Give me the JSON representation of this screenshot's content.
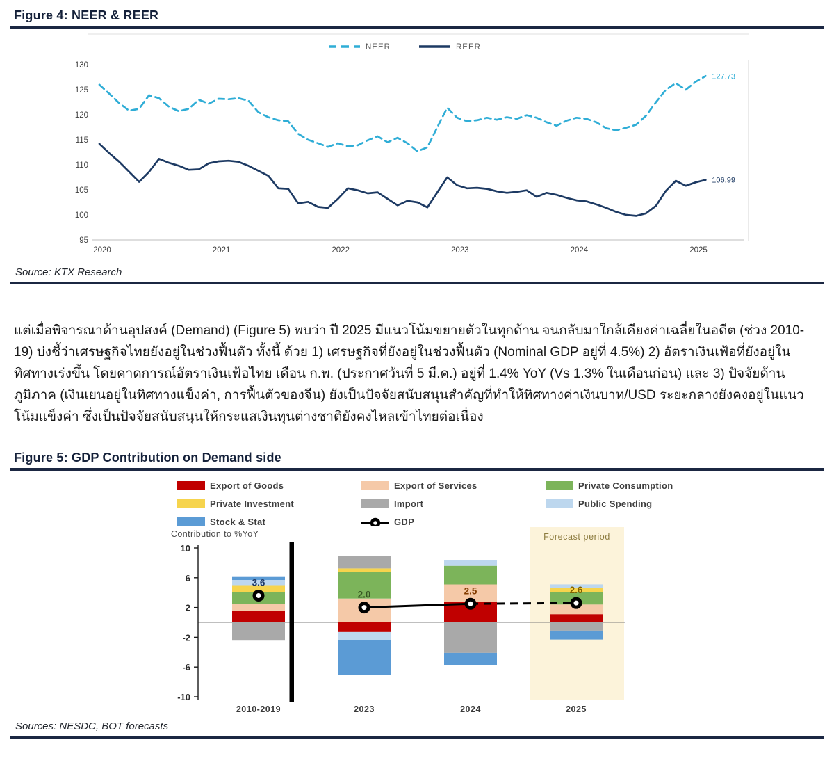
{
  "figure4": {
    "title": "Figure 4: NEER & REER",
    "source": "Source: KTX Research",
    "chart_data": {
      "type": "line",
      "x_start": "2020-01",
      "x_freq": "monthly",
      "x_year_labels": [
        "2020",
        "2021",
        "2022",
        "2023",
        "2024",
        "2025"
      ],
      "ylim": [
        95,
        130
      ],
      "yticks": [
        130,
        125,
        120,
        115,
        110,
        105,
        100,
        95
      ],
      "grid": false,
      "legend_position": "top-center",
      "series": [
        {
          "name": "NEER",
          "style": "dashed",
          "color": "#2fadd6",
          "end_label": "127.73",
          "values": [
            126.0,
            124.2,
            122.3,
            120.8,
            121.2,
            123.9,
            123.3,
            121.6,
            120.7,
            121.2,
            123.0,
            122.2,
            123.2,
            123.1,
            123.3,
            122.8,
            120.5,
            119.5,
            118.9,
            118.7,
            116.2,
            115.0,
            114.3,
            113.6,
            114.3,
            113.7,
            113.9,
            114.9,
            115.7,
            114.5,
            115.4,
            114.3,
            112.7,
            113.5,
            117.5,
            121.4,
            119.4,
            118.7,
            118.9,
            119.4,
            119.0,
            119.5,
            119.2,
            119.9,
            119.4,
            118.5,
            117.8,
            118.8,
            119.4,
            119.2,
            118.5,
            117.3,
            116.9,
            117.4,
            118.0,
            119.8,
            122.5,
            125.0,
            126.3,
            125.0,
            126.6,
            127.73
          ]
        },
        {
          "name": "REER",
          "style": "solid",
          "color": "#1d3a63",
          "end_label": "106.99",
          "values": [
            114.2,
            112.3,
            110.6,
            108.6,
            106.6,
            108.6,
            111.2,
            110.4,
            109.8,
            109.0,
            109.1,
            110.3,
            110.7,
            110.8,
            110.6,
            109.8,
            108.8,
            107.8,
            105.3,
            105.2,
            102.3,
            102.6,
            101.6,
            101.4,
            103.2,
            105.3,
            104.9,
            104.3,
            104.5,
            103.2,
            101.9,
            102.8,
            102.5,
            101.5,
            104.5,
            107.5,
            105.9,
            105.3,
            105.4,
            105.2,
            104.7,
            104.4,
            104.6,
            104.9,
            103.6,
            104.4,
            104.0,
            103.4,
            102.9,
            102.7,
            102.1,
            101.4,
            100.6,
            100.0,
            99.8,
            100.3,
            101.8,
            104.8,
            106.8,
            105.8,
            106.5,
            106.99
          ]
        }
      ]
    }
  },
  "paragraph": {
    "text": "แต่เมื่อพิจารณาด้านอุปสงค์ (Demand) (Figure 5) พบว่า ปี 2025 มีแนวโน้มขยายตัวในทุกด้าน จนกลับมาใกล้เคียงค่าเฉลี่ยในอดีต (ช่วง 2010-19) บ่งชี้ว่าเศรษฐกิจไทยยังอยู่ในช่วงฟื้นตัว ทั้งนี้ ด้วย 1) เศรษฐกิจที่ยังอยู่ในช่วงฟื้นตัว (Nominal GDP อยู่ที่ 4.5%) 2) อัตราเงินเฟ้อที่ยังอยู่ในทิศทางเร่งขึ้น โดยคาดการณ์อัตราเงินเฟ้อไทย เดือน ก.พ. (ประกาศวันที่ 5 มี.ค.) อยู่ที่ 1.4% YoY (Vs 1.3% ในเดือนก่อน) และ 3) ปัจจัยด้านภูมิภาค (เงินเยนอยู่ในทิศทางแข็งค่า, การฟื้นตัวของจีน) ยังเป็นปัจจัยสนับสนุนสำคัญที่ทำให้ทิศทางค่าเงินบาท/USD ระยะกลางยังคงอยู่ในแนวโน้มแข็งค่า ซึ่งเป็นปัจจัยสนับสนุนให้กระแสเงินทุนต่างชาติยังคงไหลเข้าไทยต่อเนื่อง"
  },
  "figure5": {
    "title": "Figure 5: GDP Contribution on Demand side",
    "source": "Sources: NESDC, BOT forecasts",
    "chart_data": {
      "type": "bar",
      "stacked": true,
      "ylabel": "Contribution to %YoY",
      "ylim": [
        -10,
        10
      ],
      "yticks": [
        10,
        6,
        2,
        -2,
        -6,
        -10
      ],
      "categories": [
        "2010-2019",
        "2023",
        "2024",
        "2025"
      ],
      "colors": {
        "goods": "#c00000",
        "services": "#f5c9a8",
        "consumption": "#7cb45a",
        "investment": "#f6d44d",
        "import": "#a9a9a9",
        "public": "#bdd7ee",
        "stock": "#5b9bd5",
        "gdp": "#000000"
      },
      "legend": [
        {
          "label": "Export of Goods",
          "key": "goods"
        },
        {
          "label": "Export of Services",
          "key": "services"
        },
        {
          "label": "Private Consumption",
          "key": "consumption"
        },
        {
          "label": "Private Investment",
          "key": "investment"
        },
        {
          "label": "Import",
          "key": "import"
        },
        {
          "label": "Public Spending",
          "key": "public"
        },
        {
          "label": "Stock & Stat",
          "key": "stock"
        },
        {
          "label": "GDP",
          "key": "gdp",
          "type": "line-marker"
        }
      ],
      "series": [
        {
          "name": "Export of Goods",
          "key": "goods",
          "values": [
            1.5,
            -1.3,
            2.75,
            1.1
          ]
        },
        {
          "name": "Export of Services",
          "key": "services",
          "values": [
            0.95,
            3.2,
            2.35,
            1.3
          ]
        },
        {
          "name": "Private Consumption",
          "key": "consumption",
          "values": [
            1.65,
            3.6,
            2.5,
            1.7
          ]
        },
        {
          "name": "Private Investment",
          "key": "investment",
          "values": [
            0.9,
            0.45,
            0,
            0.5
          ]
        },
        {
          "name": "Import",
          "key": "import",
          "values": [
            -2.45,
            1.7,
            -4.1,
            -1.1
          ]
        },
        {
          "name": "Public Spending",
          "key": "public",
          "values": [
            0.7,
            -1.1,
            0.75,
            0.5
          ]
        },
        {
          "name": "Stock & Stat",
          "key": "stock",
          "values": [
            0.4,
            -4.7,
            -1.6,
            -1.2
          ]
        }
      ],
      "gdp_line": {
        "name": "GDP",
        "values": [
          3.6,
          2.0,
          2.5,
          2.6
        ],
        "labels": [
          "3.6",
          "2.0",
          "2.5",
          "2.6"
        ],
        "label_colors": [
          "#1f3864",
          "#375623",
          "#833c00",
          "#7f6000"
        ],
        "solid_segment": [
          "2023",
          "2024"
        ],
        "dashed_segment": [
          "2024",
          "2025"
        ]
      },
      "forecast": {
        "label": "Forecast period",
        "bg": "#fcf3da",
        "label_color": "#8c7b3e",
        "category": "2025"
      }
    }
  }
}
